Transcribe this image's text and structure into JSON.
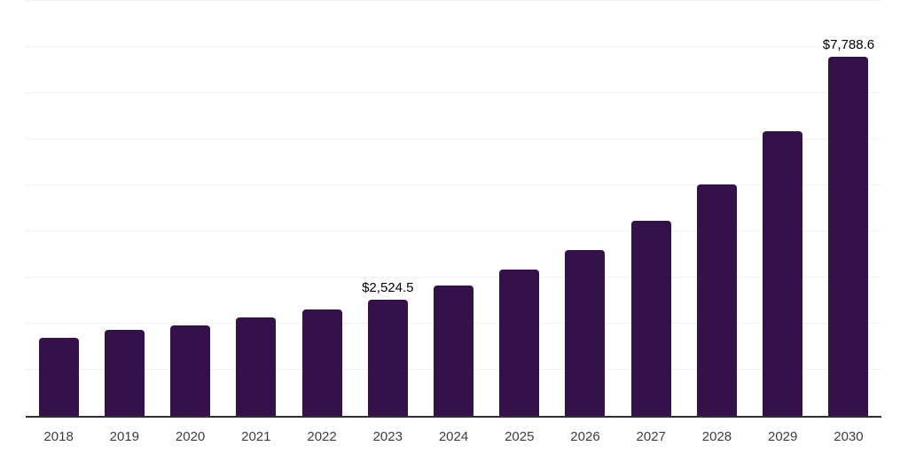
{
  "chart_data": {
    "type": "bar",
    "categories": [
      "2018",
      "2019",
      "2020",
      "2021",
      "2022",
      "2023",
      "2024",
      "2025",
      "2026",
      "2027",
      "2028",
      "2029",
      "2030"
    ],
    "values": [
      1690,
      1860,
      1965,
      2130,
      2310,
      2524.5,
      2820,
      3175,
      3605,
      4225,
      5025,
      6175,
      7788.6
    ],
    "data_labels": [
      "",
      "",
      "",
      "",
      "",
      "$2,524.5",
      "",
      "",
      "",
      "",
      "",
      "",
      "$7,788.6"
    ],
    "ylim": [
      0,
      9000
    ],
    "gridline_step": 1000,
    "grid": "horizontal",
    "legend_position": "none",
    "xlabel": "",
    "ylabel": ""
  },
  "colors": {
    "bar": "#341148",
    "gridline": "#f2f2f2",
    "axis_line": "#303030",
    "data_label": "#000000",
    "tick_label": "#3d3d3d",
    "background": "#ffffff"
  }
}
